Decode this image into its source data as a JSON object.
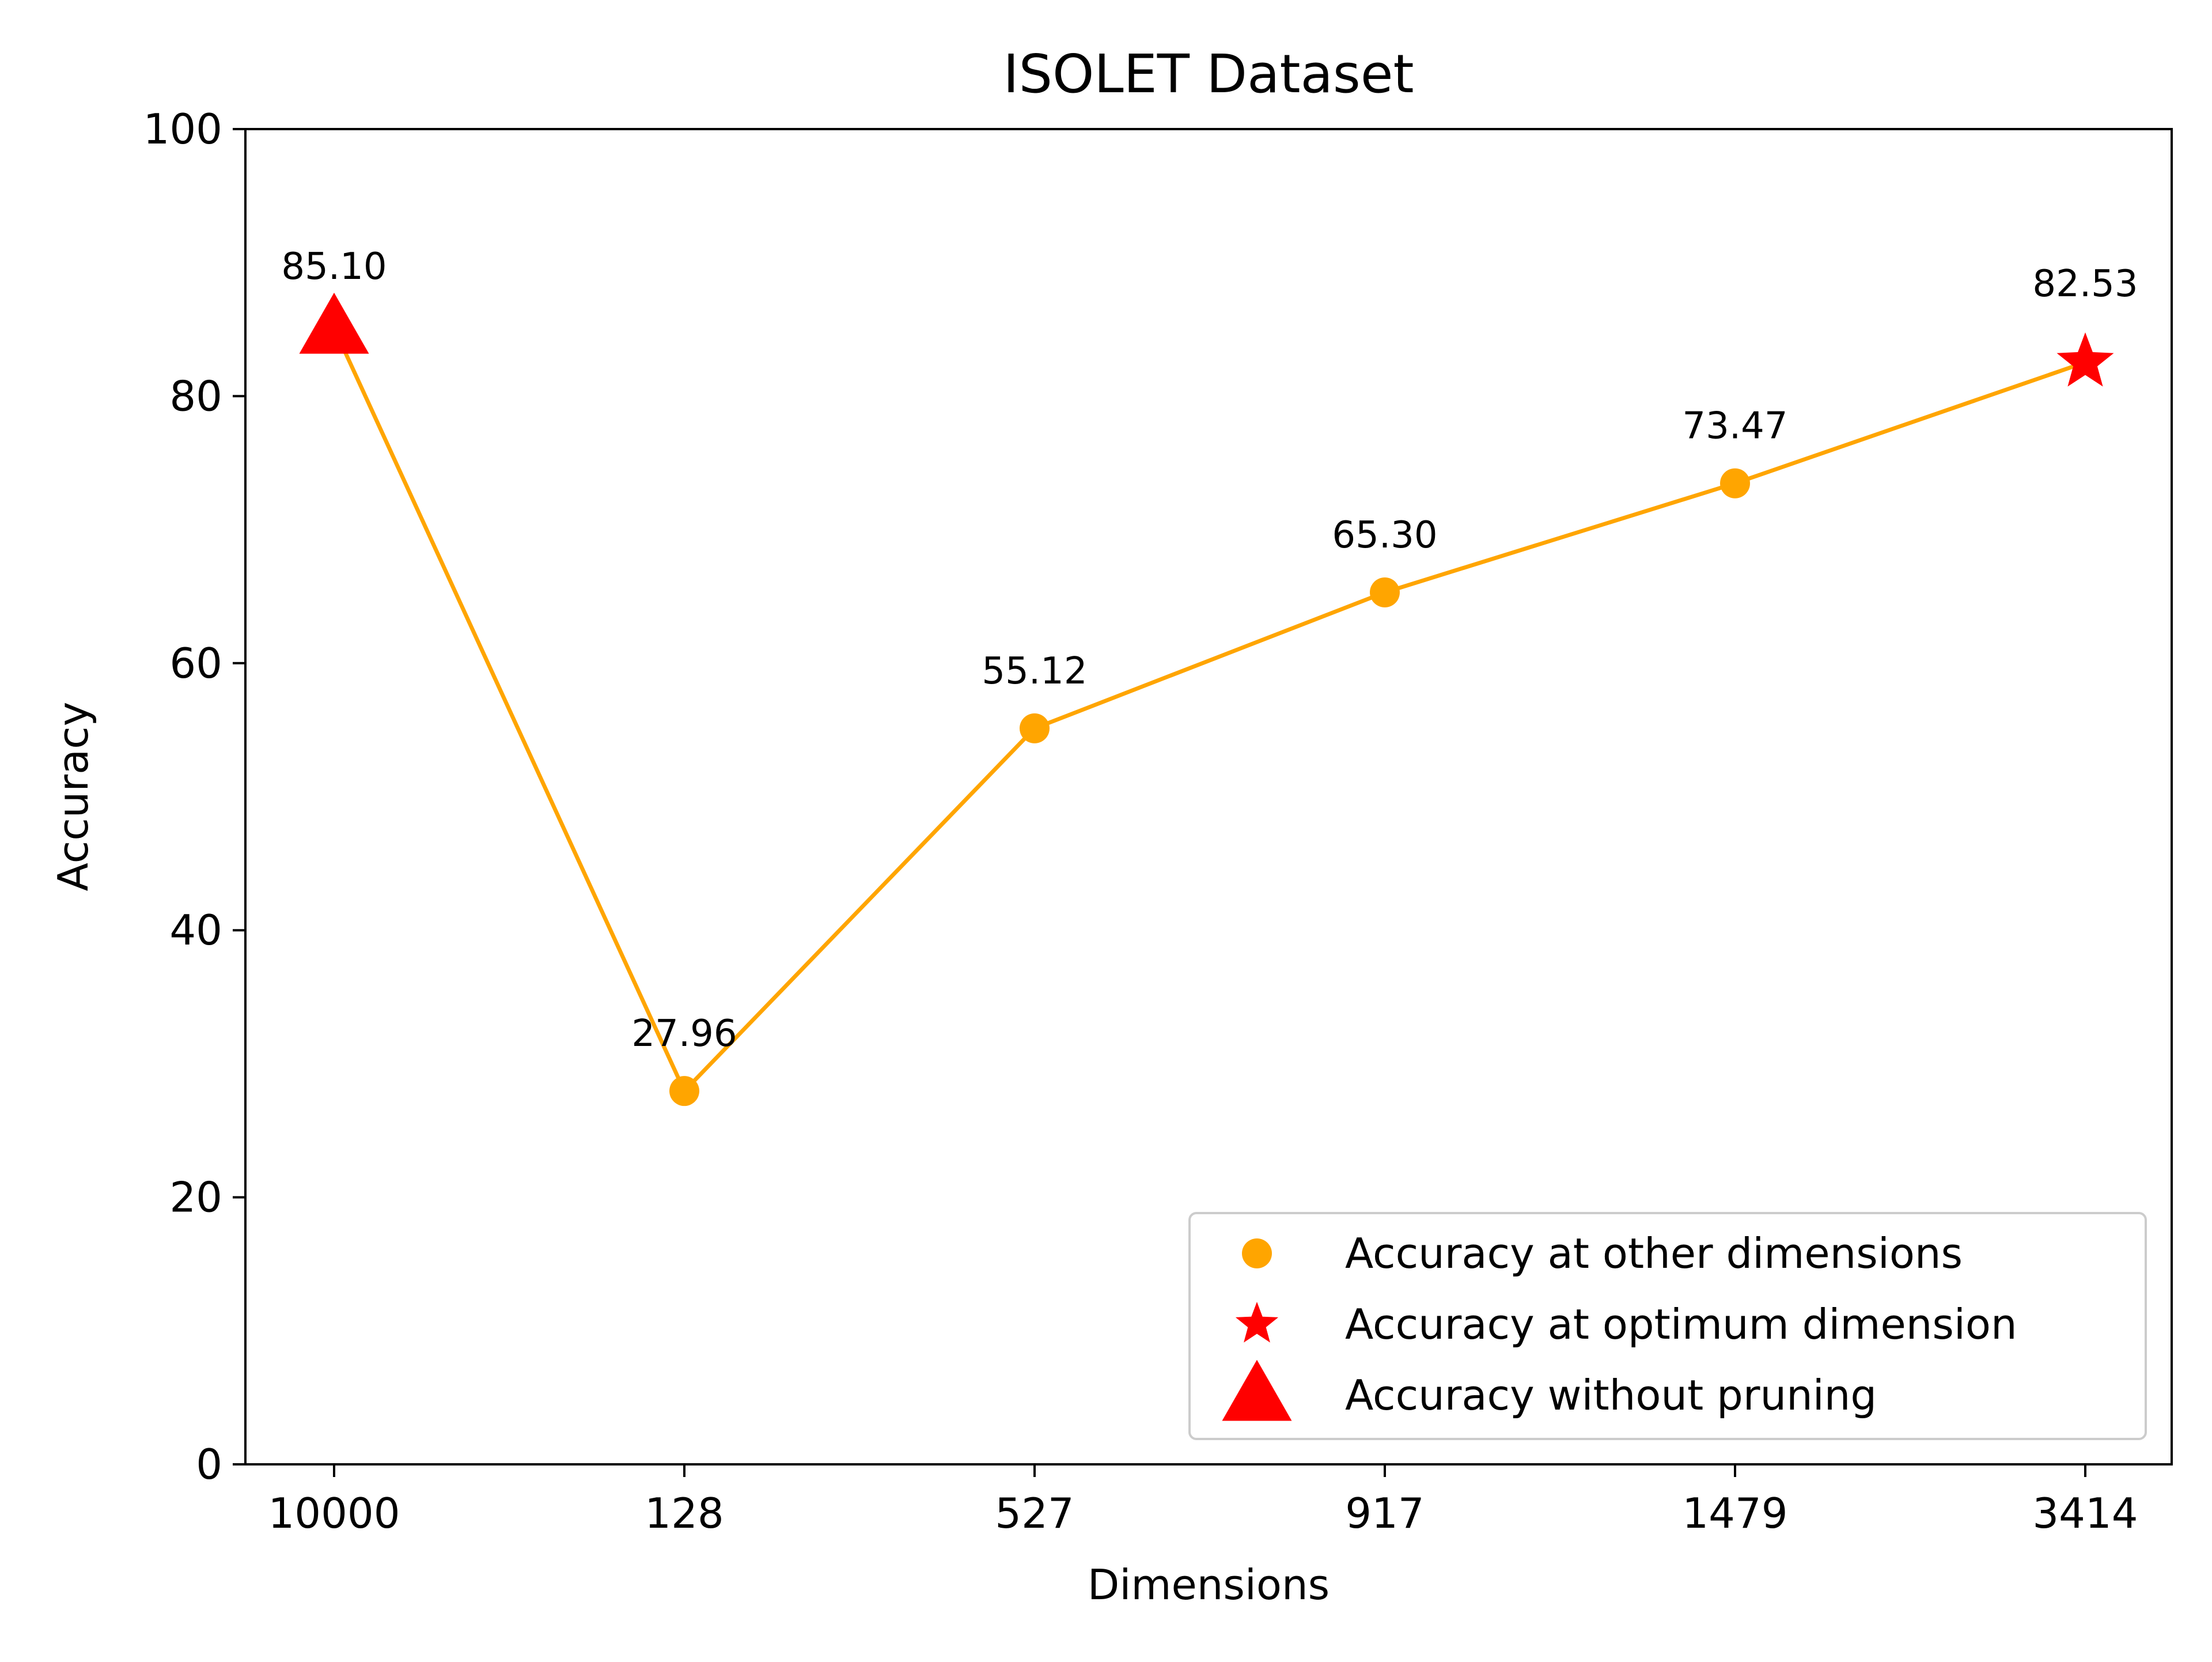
{
  "chart_data": {
    "type": "line",
    "title": "ISOLET Dataset",
    "xlabel": "Dimensions",
    "ylabel": "Accuracy",
    "categories": [
      "10000",
      "128",
      "527",
      "917",
      "1479",
      "3414"
    ],
    "values": [
      85.1,
      27.96,
      55.12,
      65.3,
      73.47,
      82.53
    ],
    "point_labels": [
      "85.10",
      "27.96",
      "55.12",
      "65.30",
      "73.47",
      "82.53"
    ],
    "point_markers": [
      "triangle",
      "circle",
      "circle",
      "circle",
      "circle",
      "star"
    ],
    "ylim": [
      0,
      100
    ],
    "yticks": [
      0,
      20,
      40,
      60,
      80,
      100
    ],
    "grid": false,
    "legend_position": "lower-right",
    "legend": [
      {
        "label": "Accuracy at other dimensions",
        "marker": "circle",
        "color": "#FFA500"
      },
      {
        "label": "Accuracy at optimum dimension",
        "marker": "star",
        "color": "#FF0000"
      },
      {
        "label": "Accuracy without pruning",
        "marker": "triangle",
        "color": "#FF0000"
      }
    ],
    "colors": {
      "line": "#FFA500",
      "other_marker": "#FFA500",
      "highlight_marker": "#FF0000"
    }
  }
}
